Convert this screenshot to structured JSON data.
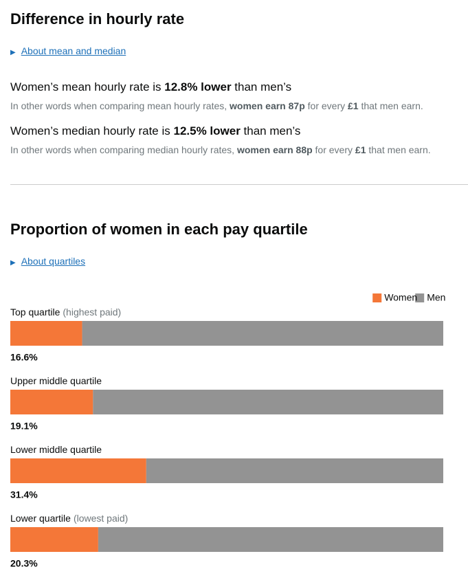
{
  "hourly": {
    "title": "Difference in hourly rate",
    "details_link": "About mean and median",
    "mean": {
      "sentence": [
        "Women’s mean hourly rate is ",
        "12.8% lower",
        " than men’s"
      ],
      "note": [
        "In other words when comparing mean hourly rates, ",
        "women earn 87p",
        " for every ",
        "£1",
        " that men earn."
      ]
    },
    "median": {
      "sentence": [
        "Women’s median hourly rate is ",
        "12.5% lower",
        " than men’s"
      ],
      "note": [
        "In other words when comparing median hourly rates, ",
        "women earn 88p",
        " for every ",
        "£1",
        " that men earn."
      ]
    }
  },
  "quartiles": {
    "title": "Proportion of women in each pay quartile",
    "details_link": "About quartiles"
  },
  "chart_data": {
    "type": "stacked-bar-horizontal",
    "categories": [
      "Top quartile",
      "Upper middle quartile",
      "Lower middle quartile",
      "Lower quartile"
    ],
    "category_notes": [
      "(highest paid)",
      null,
      null,
      "(lowest paid)"
    ],
    "series": [
      {
        "name": "Women",
        "color": "#f47738",
        "values": [
          16.6,
          19.1,
          31.4,
          20.3
        ],
        "value_labels": [
          "16.6%",
          "19.1%",
          "31.4%",
          "20.3%"
        ]
      },
      {
        "name": "Men",
        "color": "#939393",
        "values": [
          83.4,
          80.9,
          68.6,
          79.7
        ]
      }
    ],
    "xlim": [
      0,
      100
    ],
    "legend": "top-right"
  }
}
